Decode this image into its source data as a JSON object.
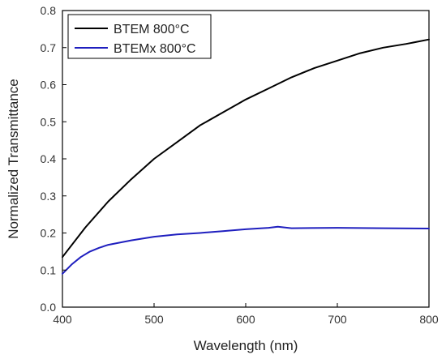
{
  "chart_data": {
    "type": "line",
    "xlabel": "Wavelength (nm)",
    "ylabel": "Normalized Transmittance",
    "xlim": [
      400,
      800
    ],
    "ylim": [
      0.0,
      0.8
    ],
    "x_ticks": [
      400,
      500,
      600,
      700,
      800
    ],
    "x_tick_labels": [
      "400",
      "500",
      "600",
      "700",
      "800"
    ],
    "y_ticks": [
      0.0,
      0.1,
      0.2,
      0.3,
      0.4,
      0.5,
      0.6,
      0.7,
      0.8
    ],
    "y_tick_labels": [
      "0.0",
      "0.1",
      "0.2",
      "0.3",
      "0.4",
      "0.5",
      "0.6",
      "0.7",
      "0.8"
    ],
    "grid": false,
    "legend_position": "top-left",
    "series": [
      {
        "name": "BTEM 800°C",
        "color": "#000000",
        "x": [
          400,
          425,
          450,
          475,
          500,
          525,
          550,
          575,
          600,
          625,
          650,
          675,
          700,
          725,
          750,
          775,
          800
        ],
        "y": [
          0.135,
          0.215,
          0.285,
          0.345,
          0.4,
          0.445,
          0.49,
          0.525,
          0.56,
          0.59,
          0.62,
          0.645,
          0.665,
          0.685,
          0.7,
          0.71,
          0.722
        ]
      },
      {
        "name": "BTEMx 800°C",
        "color": "#1f1fbf",
        "x": [
          400,
          410,
          420,
          430,
          440,
          450,
          475,
          500,
          525,
          550,
          575,
          600,
          625,
          635,
          650,
          700,
          750,
          800
        ],
        "y": [
          0.09,
          0.115,
          0.135,
          0.15,
          0.16,
          0.168,
          0.18,
          0.19,
          0.196,
          0.2,
          0.205,
          0.21,
          0.214,
          0.217,
          0.213,
          0.214,
          0.213,
          0.212
        ]
      }
    ]
  }
}
